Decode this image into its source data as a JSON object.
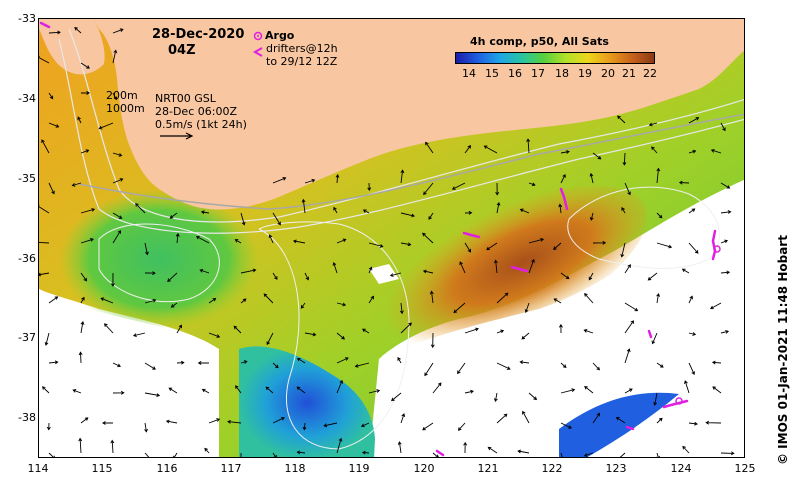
{
  "map": {
    "date_title": "28-Dec-2020",
    "time_title": "04Z",
    "argo_label": "Argo",
    "drifters_label": "drifters@12h",
    "drifters_range": "to 29/12 12Z",
    "isobath_200": "200m",
    "isobath_1000": "1000m",
    "gsl_label": "NRT00 GSL",
    "gsl_date": "28-Dec 06:00Z",
    "scale_label": "0.5m/s (1kt 24h)",
    "credit": "© IMOS 01-Jan-2021 11:48 Hobart"
  },
  "colorbar": {
    "title": "4h comp, p50, All Sats",
    "ticks": [
      "14",
      "15",
      "16",
      "17",
      "18",
      "19",
      "20",
      "21",
      "22"
    ],
    "colors": [
      "#1c1ca8",
      "#1f5fe0",
      "#1fa5e6",
      "#28c4a0",
      "#58d03e",
      "#b4e028",
      "#ecd61c",
      "#e89a1a",
      "#c8621c",
      "#8b3a14"
    ]
  },
  "axes": {
    "lon": {
      "min": 114,
      "max": 125,
      "ticks": [
        "114",
        "115",
        "116",
        "117",
        "118",
        "119",
        "120",
        "121",
        "122",
        "123",
        "124",
        "125"
      ]
    },
    "lat": {
      "min": -38.5,
      "max": -33,
      "ticks": [
        "-33",
        "-34",
        "-35",
        "-36",
        "-37",
        "-38"
      ]
    }
  },
  "colors": {
    "land": "#f8c6a0",
    "ocean_missing": "#ffffff",
    "argo": "#e020e0",
    "drifter": "#e020e0",
    "isobath": "#e8e8e8",
    "sla_contour": "#a8a8a8"
  }
}
